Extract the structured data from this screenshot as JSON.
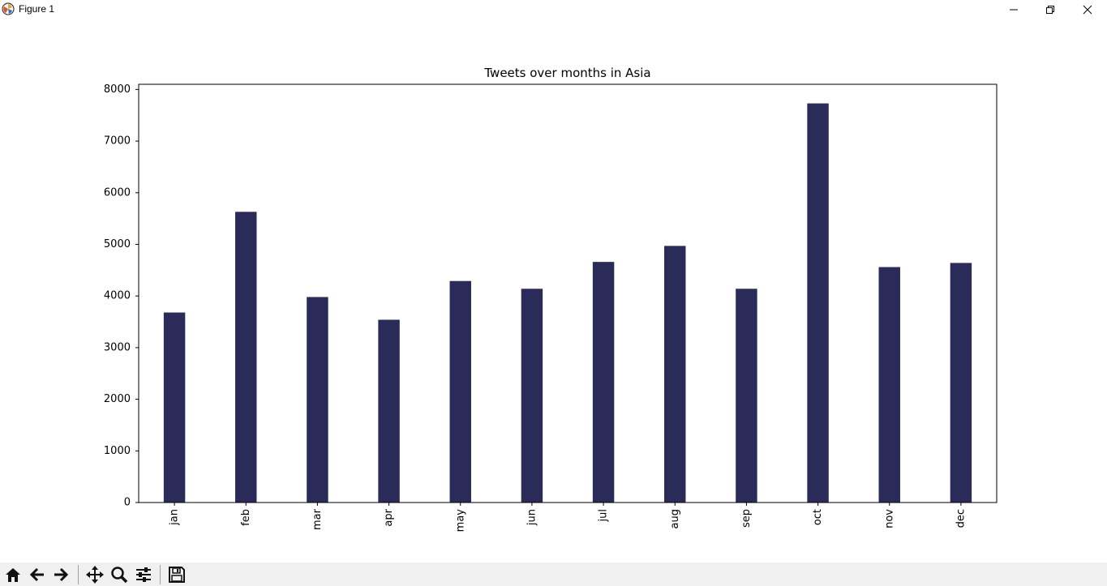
{
  "window": {
    "title": "Figure 1",
    "icon": "matplotlib-logo-icon",
    "controls": [
      "minimize-icon",
      "restore-icon",
      "close-icon"
    ]
  },
  "toolbar": {
    "buttons": [
      "home-icon",
      "back-arrow-icon",
      "forward-arrow-icon",
      "pan-icon",
      "zoom-icon",
      "configure-subplots-icon",
      "save-icon"
    ]
  },
  "chart_data": {
    "type": "bar",
    "title": "Tweets over months in Asia",
    "xlabel": "",
    "ylabel": "",
    "categories": [
      "jan",
      "feb",
      "mar",
      "apr",
      "may",
      "jun",
      "jul",
      "aug",
      "sep",
      "oct",
      "nov",
      "dec"
    ],
    "values": [
      3680,
      5630,
      3980,
      3540,
      4290,
      4140,
      4660,
      4970,
      4140,
      7730,
      4560,
      4640
    ],
    "ylim": [
      0,
      8100
    ],
    "yticks": [
      0,
      1000,
      2000,
      3000,
      4000,
      5000,
      6000,
      7000,
      8000
    ],
    "xtick_rotation": "vertical",
    "grid": false,
    "bar_color": "#2b2b59"
  }
}
